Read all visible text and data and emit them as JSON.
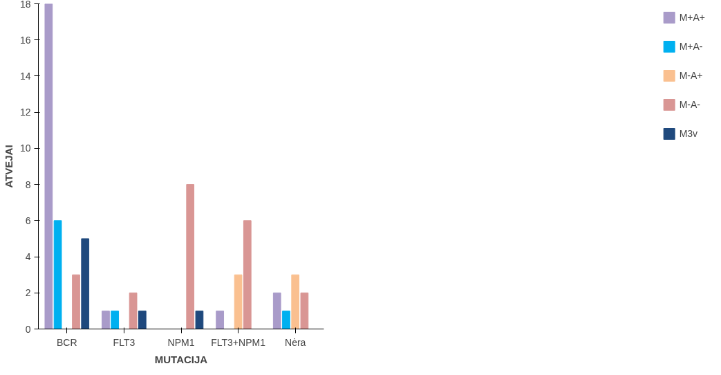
{
  "chart_data": {
    "type": "bar",
    "xlabel": "MUTACIJA",
    "ylabel": "ATVEJAI",
    "categories": [
      "BCR",
      "FLT3",
      "NPM1",
      "FLT3+NPM1",
      "Nėra"
    ],
    "series": [
      {
        "name": "M+A+",
        "color": "#a99bc9",
        "values": [
          18,
          1,
          0,
          1,
          2
        ]
      },
      {
        "name": "M+A-",
        "color": "#00b0f0",
        "values": [
          6,
          1,
          0,
          0,
          1
        ]
      },
      {
        "name": "M-A+",
        "color": "#fac090",
        "values": [
          0,
          0,
          0,
          3,
          3
        ]
      },
      {
        "name": "M-A-",
        "color": "#d99694",
        "values": [
          3,
          2,
          8,
          6,
          2
        ]
      },
      {
        "name": "M3v",
        "color": "#1f497d",
        "values": [
          5,
          1,
          1,
          0,
          0
        ]
      }
    ],
    "ylim": [
      0,
      18
    ],
    "yticks": [
      0,
      2,
      4,
      6,
      8,
      10,
      12,
      14,
      16,
      18
    ],
    "grid": false,
    "legend": "right"
  }
}
